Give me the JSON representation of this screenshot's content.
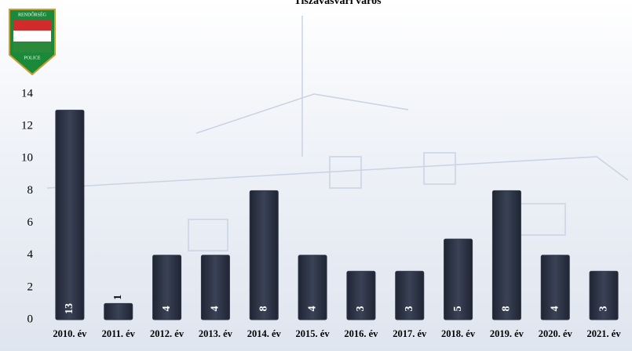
{
  "badge": {
    "top": "RENDŐRSÉG",
    "bottom": "POLICE"
  },
  "chart_data": {
    "type": "bar",
    "title": "Tiszavasvári város",
    "categories": [
      "2010. év",
      "2011. év",
      "2012. év",
      "2013. év",
      "2014. év",
      "2015. év",
      "2016. év",
      "2017. év",
      "2018. év",
      "2019. év",
      "2020. év",
      "2021. év"
    ],
    "values": [
      13,
      1,
      4,
      4,
      8,
      4,
      3,
      3,
      5,
      8,
      4,
      3
    ],
    "color": "#2f3647",
    "ylim": [
      0,
      14
    ],
    "yticks": [
      0,
      2,
      4,
      6,
      8,
      10,
      12,
      14
    ],
    "grid": false
  }
}
